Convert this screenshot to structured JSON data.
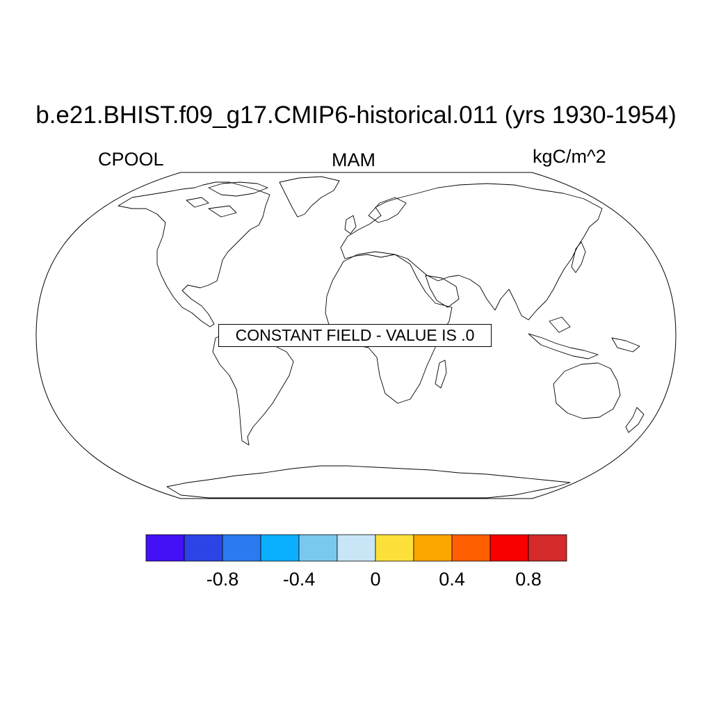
{
  "title": "b.e21.BHIST.f09_g17.CMIP6-historical.011 (yrs 1930-1954)",
  "variable": "CPOOL",
  "season": "MAM",
  "units": "kgC/m^2",
  "message": "CONSTANT FIELD - VALUE IS .0",
  "projection": "robinson",
  "colorbar": {
    "colors": [
      "#4410f5",
      "#2c44e6",
      "#2a7af0",
      "#0aafff",
      "#7ac8ee",
      "#c8e6f6",
      "#fde13a",
      "#fea600",
      "#fe5f00",
      "#f80000",
      "#d42a2a"
    ],
    "tick_labels": [
      "-0.8",
      "-0.4",
      "0",
      "0.4",
      "0.8"
    ]
  }
}
